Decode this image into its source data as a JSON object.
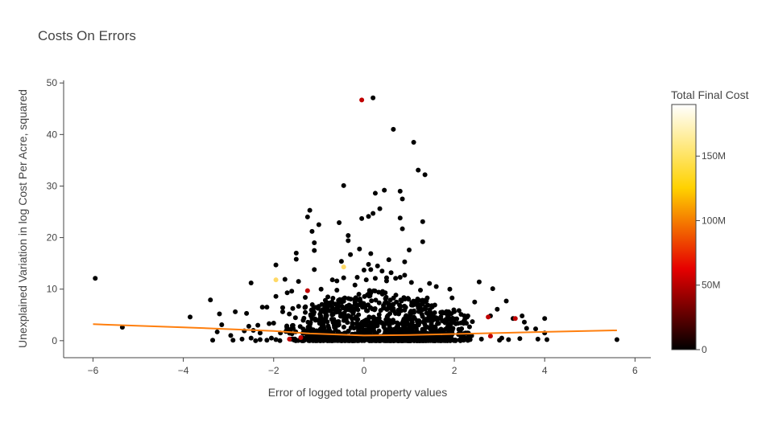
{
  "chart_data": {
    "type": "scatter",
    "title": "Costs On Errors",
    "xlabel": "Error of logged total property values",
    "ylabel": "Unexplained Variation in log Cost Per Acre, squared",
    "xlim": [
      -6.65,
      6.35
    ],
    "ylim": [
      -3.3,
      50.5
    ],
    "x_ticks": [
      -6,
      -4,
      -2,
      0,
      2,
      4,
      6
    ],
    "x_tick_labels": [
      "−6",
      "−4",
      "−2",
      "0",
      "2",
      "4",
      "6"
    ],
    "y_ticks": [
      0,
      10,
      20,
      30,
      40,
      50
    ],
    "y_tick_labels": [
      "0",
      "10",
      "20",
      "30",
      "40",
      "50"
    ],
    "grid": false,
    "colorbar": {
      "title": "Total Final Cost",
      "range": [
        0,
        190
      ],
      "ticks": [
        0,
        50,
        100,
        150
      ],
      "tick_labels": [
        "0",
        "50M",
        "100M",
        "150M"
      ],
      "colorscale": [
        "#000000",
        "#e60000",
        "#ffd200",
        "#ffffff"
      ]
    },
    "trendline": {
      "color": "#ff7f0e",
      "x": [
        -6,
        -4,
        -2,
        -1.2,
        0,
        1,
        2,
        4,
        5.6
      ],
      "y": [
        3.2,
        2.6,
        1.9,
        1.4,
        1.0,
        1.1,
        1.3,
        1.7,
        2.0
      ]
    },
    "series": [
      {
        "marker_color": "#000000",
        "points": [
          [
            -5.95,
            12.1
          ],
          [
            -5.35,
            2.6
          ],
          [
            -3.85,
            4.6
          ],
          [
            -3.4,
            7.9
          ],
          [
            -3.35,
            0.1
          ],
          [
            -3.25,
            1.7
          ],
          [
            -3.2,
            5.2
          ],
          [
            -3.15,
            3.1
          ],
          [
            -2.95,
            1.0
          ],
          [
            -2.9,
            0.1
          ],
          [
            -2.85,
            5.6
          ],
          [
            -2.7,
            0.3
          ],
          [
            -2.65,
            1.9
          ],
          [
            -2.6,
            5.3
          ],
          [
            -2.55,
            2.8
          ],
          [
            -2.5,
            0.5
          ],
          [
            -2.5,
            11.2
          ],
          [
            -2.45,
            2.0
          ],
          [
            -2.4,
            0.0
          ],
          [
            -2.35,
            3.0
          ],
          [
            -2.3,
            1.5
          ],
          [
            -2.3,
            0.2
          ],
          [
            -2.25,
            6.5
          ],
          [
            -2.15,
            6.5
          ],
          [
            -2.15,
            0.1
          ],
          [
            -2.1,
            3.3
          ],
          [
            -2.05,
            0.5
          ],
          [
            -2.0,
            3.4
          ],
          [
            -1.95,
            0.2
          ],
          [
            -1.95,
            8.6
          ],
          [
            -1.95,
            14.7
          ],
          [
            -1.85,
            1.5
          ],
          [
            -1.8,
            5.6
          ],
          [
            -1.8,
            6.4
          ],
          [
            -1.75,
            11.9
          ],
          [
            -1.7,
            9.3
          ],
          [
            -1.6,
            9.6
          ],
          [
            -1.5,
            17.0
          ],
          [
            -1.5,
            15.8
          ],
          [
            -1.45,
            11.5
          ],
          [
            -1.3,
            8.4
          ],
          [
            -1.3,
            6.5
          ],
          [
            -1.3,
            5.5
          ],
          [
            -1.25,
            24.0
          ],
          [
            -1.2,
            25.3
          ],
          [
            -1.15,
            21.2
          ],
          [
            -1.1,
            17.5
          ],
          [
            -1.1,
            19.0
          ],
          [
            -1.1,
            13.8
          ],
          [
            -1.0,
            22.5
          ],
          [
            -0.95,
            10.0
          ],
          [
            -0.8,
            8.5
          ],
          [
            -0.7,
            11.8
          ],
          [
            -0.6,
            11.6
          ],
          [
            -0.6,
            9.8
          ],
          [
            -0.55,
            22.9
          ],
          [
            -0.5,
            15.4
          ],
          [
            -0.45,
            12.2
          ],
          [
            -0.45,
            30.1
          ],
          [
            -0.35,
            19.4
          ],
          [
            -0.35,
            20.4
          ],
          [
            -0.3,
            16.7
          ],
          [
            -0.2,
            10.8
          ],
          [
            -0.15,
            12.3
          ],
          [
            -0.1,
            17.8
          ],
          [
            -0.05,
            23.7
          ],
          [
            0.0,
            13.7
          ],
          [
            0.05,
            11.8
          ],
          [
            0.1,
            24.1
          ],
          [
            0.1,
            14.8
          ],
          [
            0.15,
            16.9
          ],
          [
            0.15,
            13.8
          ],
          [
            0.2,
            47.1
          ],
          [
            0.2,
            24.7
          ],
          [
            0.25,
            28.6
          ],
          [
            0.25,
            12.1
          ],
          [
            0.3,
            14.5
          ],
          [
            0.35,
            25.6
          ],
          [
            0.4,
            13.5
          ],
          [
            0.45,
            29.2
          ],
          [
            0.5,
            12.2
          ],
          [
            0.5,
            11.6
          ],
          [
            0.55,
            15.7
          ],
          [
            0.6,
            13.2
          ],
          [
            0.65,
            41.0
          ],
          [
            0.7,
            12.1
          ],
          [
            0.8,
            12.3
          ],
          [
            0.8,
            29.0
          ],
          [
            0.8,
            23.8
          ],
          [
            0.85,
            27.5
          ],
          [
            0.85,
            21.7
          ],
          [
            0.9,
            12.7
          ],
          [
            0.9,
            15.3
          ],
          [
            1.0,
            17.6
          ],
          [
            1.05,
            11.3
          ],
          [
            1.1,
            38.5
          ],
          [
            1.2,
            33.1
          ],
          [
            1.25,
            9.8
          ],
          [
            1.3,
            23.1
          ],
          [
            1.3,
            19.2
          ],
          [
            1.35,
            32.2
          ],
          [
            1.4,
            8.3
          ],
          [
            1.45,
            11.1
          ],
          [
            1.5,
            6.8
          ],
          [
            1.6,
            10.5
          ],
          [
            1.7,
            5.5
          ],
          [
            1.75,
            3.8
          ],
          [
            1.8,
            2.2
          ],
          [
            1.85,
            4.6
          ],
          [
            1.9,
            10.0
          ],
          [
            1.95,
            8.3
          ],
          [
            2.0,
            3.5
          ],
          [
            2.1,
            2.2
          ],
          [
            2.15,
            5.1
          ],
          [
            2.25,
            1.5
          ],
          [
            2.3,
            4.8
          ],
          [
            2.35,
            0.2
          ],
          [
            2.4,
            3.7
          ],
          [
            2.45,
            7.5
          ],
          [
            2.55,
            11.4
          ],
          [
            2.6,
            0.3
          ],
          [
            2.8,
            4.8
          ],
          [
            2.85,
            10.1
          ],
          [
            2.95,
            6.1
          ],
          [
            3.0,
            0.1
          ],
          [
            3.05,
            0.5
          ],
          [
            3.15,
            7.7
          ],
          [
            3.2,
            0.2
          ],
          [
            3.3,
            4.3
          ],
          [
            3.45,
            0.4
          ],
          [
            3.5,
            4.8
          ],
          [
            3.55,
            3.6
          ],
          [
            3.6,
            2.4
          ],
          [
            3.8,
            2.3
          ],
          [
            3.85,
            0.3
          ],
          [
            4.0,
            4.3
          ],
          [
            4.0,
            1.5
          ],
          [
            4.05,
            0.2
          ],
          [
            5.6,
            0.2
          ]
        ]
      },
      {
        "marker_color": "#c00000",
        "points": [
          [
            -0.05,
            46.7
          ],
          [
            -1.25,
            9.7
          ],
          [
            2.75,
            4.6
          ],
          [
            3.35,
            4.3
          ],
          [
            2.8,
            0.9
          ],
          [
            -1.65,
            0.3
          ],
          [
            -1.4,
            0.6
          ]
        ]
      },
      {
        "marker_color": "#ffd966",
        "points": [
          [
            -1.95,
            11.8
          ],
          [
            -0.45,
            14.3
          ]
        ]
      }
    ],
    "dense_cloud": {
      "marker_color": "#000000",
      "x_range": [
        -1.9,
        2.5
      ],
      "y_range": [
        0,
        10
      ],
      "count": 1200
    }
  }
}
